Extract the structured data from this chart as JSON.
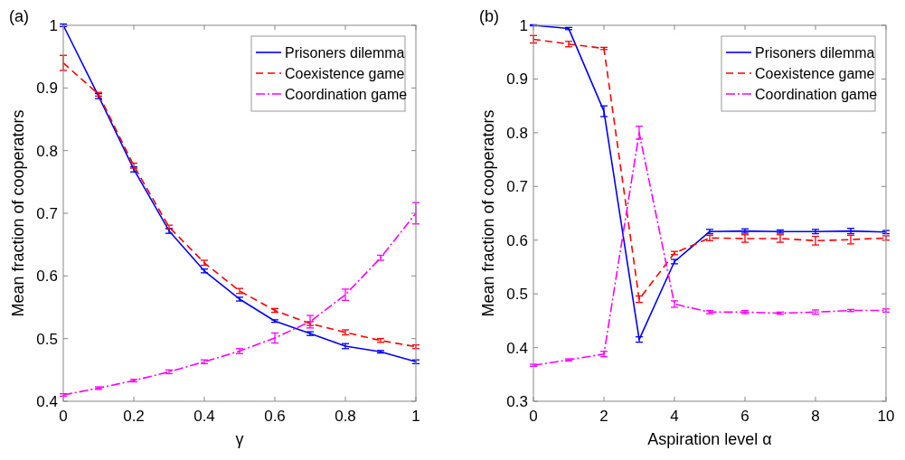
{
  "chart_data": [
    {
      "type": "line",
      "title": "(a)",
      "xlabel": "γ",
      "ylabel": "Mean fraction of cooperators",
      "x": [
        0,
        0.1,
        0.2,
        0.3,
        0.4,
        0.5,
        0.6,
        0.7,
        0.8,
        0.9,
        1
      ],
      "xlim": [
        0,
        1
      ],
      "xticks": [
        0,
        0.2,
        0.4,
        0.6,
        0.8,
        1
      ],
      "ylim": [
        0.4,
        1
      ],
      "yticks": [
        0.4,
        0.5,
        0.6,
        0.7,
        0.8,
        0.9,
        1
      ],
      "legend": "top right",
      "grid": false,
      "marker": "none",
      "series": [
        {
          "name": "Prisoners dilemma",
          "color": "#0000ff",
          "line_style": "solid",
          "values": [
            1,
            0.887,
            0.77,
            0.672,
            0.608,
            0.563,
            0.528,
            0.508,
            0.488,
            0.479,
            0.463
          ],
          "errors": [
            0.002,
            0.004,
            0.004,
            0.004,
            0.003,
            0.003,
            0.002,
            0.003,
            0.004,
            0.002,
            0.003
          ]
        },
        {
          "name": "Coexistence game",
          "color": "#ff0000",
          "line_style": "dashed",
          "values": [
            0.94,
            0.89,
            0.776,
            0.678,
            0.621,
            0.576,
            0.545,
            0.524,
            0.51,
            0.497,
            0.487
          ],
          "errors": [
            0.012,
            0.003,
            0.004,
            0.003,
            0.004,
            0.004,
            0.003,
            0.003,
            0.004,
            0.003,
            0.003
          ]
        },
        {
          "name": "Coordination game",
          "color": "#ff00ff",
          "line_style": "dashdot",
          "values": [
            0.41,
            0.421,
            0.433,
            0.447,
            0.463,
            0.48,
            0.501,
            0.527,
            0.57,
            0.629,
            0.7
          ],
          "errors": [
            0.002,
            0.002,
            0.002,
            0.003,
            0.003,
            0.004,
            0.008,
            0.01,
            0.009,
            0.004,
            0.017
          ]
        }
      ]
    },
    {
      "type": "line",
      "title": "(b)",
      "xlabel": "Aspiration level α",
      "ylabel": "Mean fraction of cooperators",
      "x": [
        0,
        1,
        2,
        3,
        4,
        5,
        6,
        7,
        8,
        9,
        10
      ],
      "xlim": [
        0,
        10
      ],
      "xticks": [
        0,
        2,
        4,
        6,
        8,
        10
      ],
      "ylim": [
        0.3,
        1
      ],
      "yticks": [
        0.3,
        0.4,
        0.5,
        0.6,
        0.7,
        0.8,
        0.9,
        1
      ],
      "legend": "top right",
      "grid": false,
      "marker": "none",
      "series": [
        {
          "name": "Prisoners dilemma",
          "color": "#0000ff",
          "line_style": "solid",
          "values": [
            1,
            0.994,
            0.84,
            0.415,
            0.56,
            0.616,
            0.617,
            0.616,
            0.616,
            0.617,
            0.615
          ],
          "errors": [
            0.001,
            0.002,
            0.01,
            0.005,
            0.004,
            0.004,
            0.004,
            0.003,
            0.004,
            0.005,
            0.003
          ]
        },
        {
          "name": "Coexistence game",
          "color": "#ff0000",
          "line_style": "dashed",
          "values": [
            0.974,
            0.965,
            0.957,
            0.49,
            0.576,
            0.604,
            0.603,
            0.603,
            0.599,
            0.601,
            0.604
          ],
          "errors": [
            0.007,
            0.005,
            0.002,
            0.006,
            0.003,
            0.005,
            0.007,
            0.007,
            0.008,
            0.008,
            0.004
          ]
        },
        {
          "name": "Coordination game",
          "color": "#ff00ff",
          "line_style": "dashdot",
          "values": [
            0.367,
            0.377,
            0.388,
            0.8,
            0.481,
            0.466,
            0.466,
            0.464,
            0.466,
            0.469,
            0.469
          ],
          "errors": [
            0.002,
            0.002,
            0.005,
            0.012,
            0.006,
            0.003,
            0.003,
            0.002,
            0.004,
            0.002,
            0.003
          ]
        }
      ]
    }
  ]
}
